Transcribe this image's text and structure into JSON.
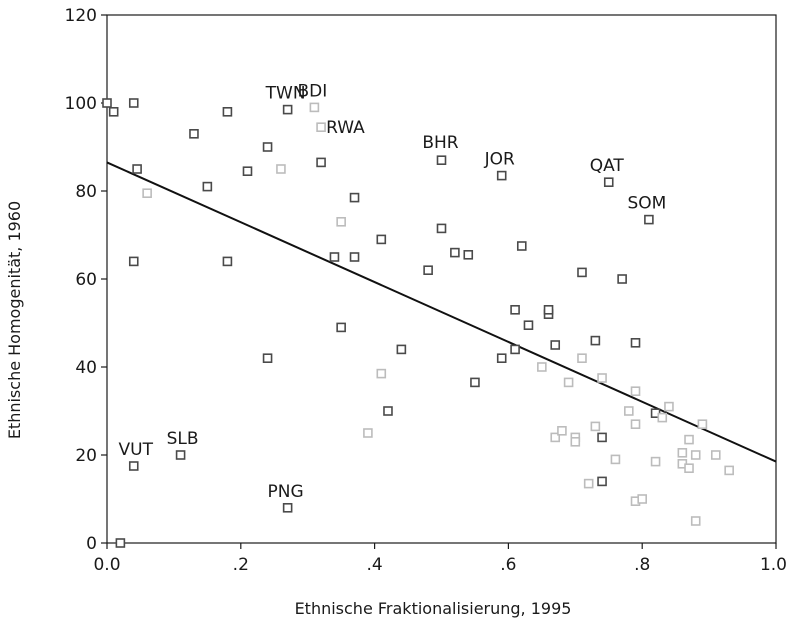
{
  "chart_data": {
    "type": "scatter",
    "xlabel": "Ethnische Fraktionalisierung, 1995",
    "ylabel": "Ethnische Homogenität, 1960",
    "xlim": [
      0,
      1
    ],
    "ylim": [
      0,
      120
    ],
    "x_ticks": [
      0,
      0.2,
      0.4,
      0.6,
      0.8,
      1.0
    ],
    "x_tick_labels": [
      "0.0",
      ".2",
      ".4",
      ".6",
      ".8",
      "1.0"
    ],
    "y_ticks": [
      0,
      20,
      40,
      60,
      80,
      100,
      120
    ],
    "y_tick_labels": [
      "0",
      "20",
      "40",
      "60",
      "80",
      "100",
      "120"
    ],
    "grid": false,
    "regression_line": {
      "x": [
        0,
        1
      ],
      "y": [
        86.5,
        18.5
      ]
    },
    "colors": {
      "dark": "#4a4a4a",
      "light": "#bcbcbc",
      "line": "#111111"
    },
    "series": [
      {
        "marker": "square",
        "color_key": "dark",
        "points": [
          [
            0.0,
            100
          ],
          [
            0.01,
            98
          ],
          [
            0.04,
            100
          ],
          [
            0.045,
            85
          ],
          [
            0.04,
            64
          ],
          [
            0.13,
            93
          ],
          [
            0.15,
            81
          ],
          [
            0.18,
            98
          ],
          [
            0.18,
            64
          ],
          [
            0.21,
            84.5
          ],
          [
            0.24,
            90
          ],
          [
            0.24,
            42
          ],
          [
            0.27,
            98.5
          ],
          [
            0.32,
            86.5
          ],
          [
            0.34,
            65
          ],
          [
            0.35,
            49
          ],
          [
            0.37,
            78.5
          ],
          [
            0.37,
            65
          ],
          [
            0.41,
            69
          ],
          [
            0.42,
            30
          ],
          [
            0.44,
            44
          ],
          [
            0.48,
            62
          ],
          [
            0.5,
            87
          ],
          [
            0.5,
            71.5
          ],
          [
            0.52,
            66
          ],
          [
            0.54,
            65.5
          ],
          [
            0.55,
            36.5
          ],
          [
            0.59,
            83.5
          ],
          [
            0.59,
            42
          ],
          [
            0.61,
            53
          ],
          [
            0.61,
            44
          ],
          [
            0.62,
            67.5
          ],
          [
            0.63,
            49.5
          ],
          [
            0.66,
            52
          ],
          [
            0.66,
            53
          ],
          [
            0.67,
            45
          ],
          [
            0.71,
            61.5
          ],
          [
            0.73,
            46
          ],
          [
            0.74,
            14
          ],
          [
            0.74,
            24
          ],
          [
            0.75,
            82
          ],
          [
            0.77,
            60
          ],
          [
            0.79,
            45.5
          ],
          [
            0.81,
            73.5
          ],
          [
            0.82,
            29.5
          ],
          [
            0.02,
            0
          ],
          [
            0.04,
            17.5
          ],
          [
            0.11,
            20
          ],
          [
            0.27,
            8
          ]
        ],
        "labels": [
          {
            "text": "TWN",
            "x": 0.27,
            "y": 98.5
          },
          {
            "text": "BHR",
            "x": 0.5,
            "y": 87
          },
          {
            "text": "JOR",
            "x": 0.59,
            "y": 83.5
          },
          {
            "text": "QAT",
            "x": 0.75,
            "y": 82
          },
          {
            "text": "SOM",
            "x": 0.81,
            "y": 73.5
          },
          {
            "text": "VUT",
            "x": 0.04,
            "y": 17.5
          },
          {
            "text": "SLB",
            "x": 0.11,
            "y": 20
          },
          {
            "text": "PNG",
            "x": 0.27,
            "y": 8
          }
        ]
      },
      {
        "marker": "square",
        "color_key": "light",
        "points": [
          [
            0.06,
            79.5
          ],
          [
            0.26,
            85
          ],
          [
            0.31,
            99
          ],
          [
            0.32,
            94.5
          ],
          [
            0.35,
            73
          ],
          [
            0.39,
            25
          ],
          [
            0.41,
            38.5
          ],
          [
            0.65,
            40
          ],
          [
            0.67,
            24
          ],
          [
            0.68,
            25.5
          ],
          [
            0.69,
            36.5
          ],
          [
            0.7,
            24
          ],
          [
            0.7,
            23
          ],
          [
            0.71,
            42
          ],
          [
            0.72,
            13.5
          ],
          [
            0.73,
            26.5
          ],
          [
            0.74,
            37.5
          ],
          [
            0.76,
            19
          ],
          [
            0.78,
            30
          ],
          [
            0.79,
            27
          ],
          [
            0.79,
            34.5
          ],
          [
            0.79,
            9.5
          ],
          [
            0.8,
            10
          ],
          [
            0.82,
            18.5
          ],
          [
            0.83,
            28.5
          ],
          [
            0.84,
            31
          ],
          [
            0.86,
            18
          ],
          [
            0.86,
            20.5
          ],
          [
            0.87,
            17
          ],
          [
            0.87,
            23.5
          ],
          [
            0.88,
            5
          ],
          [
            0.88,
            20
          ],
          [
            0.89,
            27
          ],
          [
            0.91,
            20
          ],
          [
            0.93,
            16.5
          ]
        ],
        "labels": [
          {
            "text": "BDI",
            "x": 0.31,
            "y": 99
          },
          {
            "text": "RWA",
            "x": 0.32,
            "y": 94.5
          }
        ]
      }
    ]
  }
}
